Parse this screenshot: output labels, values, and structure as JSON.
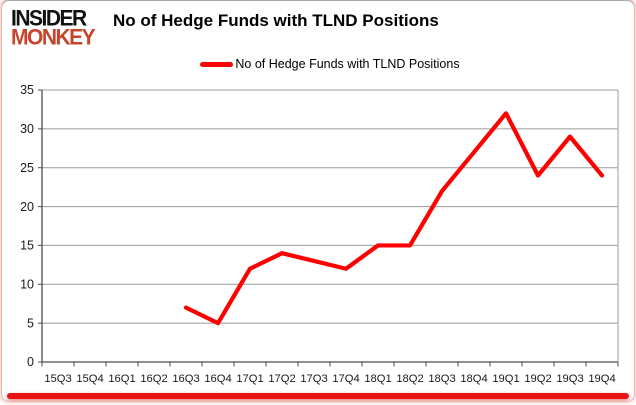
{
  "header": {
    "logo_line1": "INSIDER",
    "logo_line2": "MONKEY",
    "title": "No of Hedge Funds with TLND Positions"
  },
  "legend": {
    "label": "No of Hedge Funds with TLND Positions"
  },
  "chart_data": {
    "type": "line",
    "title": "No of Hedge Funds with TLND Positions",
    "categories": [
      "15Q3",
      "15Q4",
      "16Q1",
      "16Q2",
      "16Q3",
      "16Q4",
      "17Q1",
      "17Q2",
      "17Q3",
      "17Q4",
      "18Q1",
      "18Q2",
      "18Q3",
      "18Q4",
      "19Q1",
      "19Q2",
      "19Q3",
      "19Q4"
    ],
    "series": [
      {
        "name": "No of Hedge Funds with TLND Positions",
        "color": "#fe0000",
        "values": [
          null,
          null,
          null,
          null,
          7,
          5,
          12,
          14,
          13,
          12,
          15,
          15,
          22,
          27,
          32,
          24,
          29,
          24
        ]
      }
    ],
    "ylim": [
      0,
      35
    ],
    "yticks": [
      0,
      5,
      10,
      15,
      20,
      25,
      30,
      35
    ],
    "grid": true,
    "legend_position": "top"
  },
  "colors": {
    "series_red": "#fe0000",
    "logo_red": "#c7452a",
    "logo_black": "#111111",
    "axis": "#4d4d4d",
    "gridline": "#9b9b9b",
    "tick_label": "#1a1a1a",
    "frame_bottom_red": "#e81414"
  }
}
